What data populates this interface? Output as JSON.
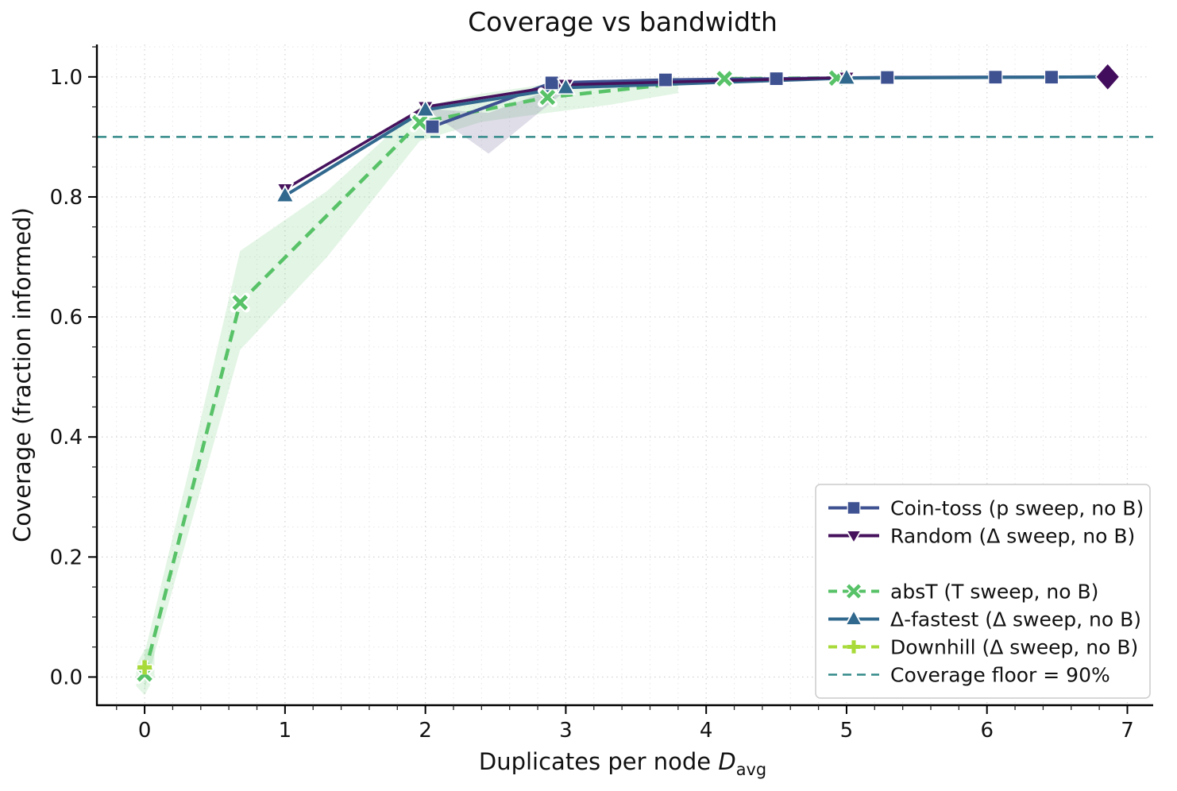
{
  "chart_data": {
    "type": "line",
    "title": "Coverage vs bandwidth",
    "xlabel": "Duplicates per node D_avg",
    "xlabel_parts": {
      "prefix": "Duplicates per node ",
      "var": "D",
      "sub": "avg"
    },
    "ylabel": "Coverage (fraction informed)",
    "xlim": [
      -0.34,
      7.15
    ],
    "ylim": [
      -0.047,
      1.054
    ],
    "xticks": [
      0,
      1,
      2,
      3,
      4,
      5,
      6,
      7
    ],
    "yticks": [
      0.0,
      0.2,
      0.4,
      0.6,
      0.8,
      1.0
    ],
    "x_minor_step": 0.2,
    "y_minor_step": 0.05,
    "grid": "dotted",
    "legend_position": "lower right",
    "coverage_floor": {
      "y": 0.9,
      "label": "Coverage floor = 90%",
      "color": "#338a8a",
      "dash": "dashed"
    },
    "series": [
      {
        "name": "Coin-toss (p sweep, no B)",
        "color": "#3e5191",
        "marker": "square",
        "dash": "solid",
        "x": [
          2.05,
          2.9,
          3.71,
          4.5,
          5.29,
          6.06,
          6.46,
          6.86
        ],
        "y": [
          0.917,
          0.99,
          0.995,
          0.997,
          0.999,
          0.9995,
          0.9995,
          1.0
        ],
        "no_marker_idx": [
          7
        ]
      },
      {
        "name": "Random (Δ sweep, no B)",
        "color": "#46125c",
        "marker": "triangle-down",
        "dash": "solid",
        "x": [
          1.0,
          2.0,
          3.0,
          5.0
        ],
        "y": [
          0.813,
          0.95,
          0.987,
          0.999
        ],
        "no_marker_idx": []
      },
      {
        "name": "absT (T sweep, no B)",
        "color": "#57c267",
        "marker": "x",
        "dash": "dashed",
        "x": [
          0.0,
          0.68,
          1.96,
          2.87,
          4.13,
          4.93
        ],
        "y": [
          0.005,
          0.624,
          0.924,
          0.966,
          0.997,
          0.998
        ],
        "no_marker_idx": []
      },
      {
        "name": "Δ-fastest (Δ sweep, no B)",
        "color": "#31688e",
        "marker": "triangle-up",
        "dash": "solid",
        "x": [
          1.0,
          2.0,
          3.0,
          5.0,
          6.86
        ],
        "y": [
          0.802,
          0.945,
          0.982,
          0.998,
          1.0
        ],
        "no_marker_idx": [
          4
        ]
      },
      {
        "name": "Downhill (Δ sweep, no B)",
        "color": "#a8da3a",
        "marker": "plus",
        "dash": "dashed",
        "x": [
          0.0
        ],
        "y": [
          0.016
        ],
        "no_marker_idx": []
      }
    ],
    "highlight_point": {
      "x": 6.86,
      "y": 1.0,
      "marker": "diamond",
      "color": "#430d5d"
    },
    "bands": [
      {
        "name": "absT-band",
        "color": "rgba(87,194,103,0.17)",
        "x": [
          0.0,
          0.3,
          0.68,
          1.3,
          1.96,
          2.4,
          2.87,
          3.3,
          3.8
        ],
        "upper": [
          0.04,
          0.33,
          0.71,
          0.81,
          0.95,
          0.972,
          0.988,
          0.995,
          0.999
        ],
        "lower": [
          -0.02,
          0.23,
          0.545,
          0.7,
          0.893,
          0.925,
          0.94,
          0.953,
          0.973
        ]
      },
      {
        "name": "cointoss-band",
        "color": "rgba(110,100,150,0.22)",
        "x": [
          2.0,
          2.45,
          3.0
        ],
        "upper": [
          0.947,
          0.94,
          0.988
        ],
        "lower": [
          0.947,
          0.872,
          0.977
        ]
      },
      {
        "name": "origin-halo",
        "color": "rgba(87,194,103,0.17)",
        "x": [
          -0.06,
          0.0,
          0.07
        ],
        "upper": [
          0.02,
          0.046,
          0.05
        ],
        "lower": [
          -0.015,
          -0.03,
          0.0
        ]
      }
    ],
    "legend": {
      "items": [
        {
          "label": "Coin-toss (p sweep, no B)",
          "color": "#3e5191",
          "marker": "square",
          "dash": "solid",
          "spacer": false
        },
        {
          "label": "Random (Δ sweep, no B)",
          "color": "#46125c",
          "marker": "triangle-down",
          "dash": "solid",
          "spacer": false
        },
        {
          "label": "",
          "color": "",
          "marker": "none",
          "dash": "none",
          "spacer": true
        },
        {
          "label": "absT (T sweep, no B)",
          "color": "#57c267",
          "marker": "x",
          "dash": "dashed",
          "spacer": false
        },
        {
          "label": "Δ-fastest (Δ sweep, no B)",
          "color": "#31688e",
          "marker": "triangle-up",
          "dash": "solid",
          "spacer": false
        },
        {
          "label": "Downhill (Δ sweep, no B)",
          "color": "#a8da3a",
          "marker": "plus",
          "dash": "dashed",
          "spacer": false
        },
        {
          "label": "Coverage floor = 90%",
          "color": "#338a8a",
          "marker": "none",
          "dash": "dashed",
          "spacer": false
        }
      ]
    }
  }
}
